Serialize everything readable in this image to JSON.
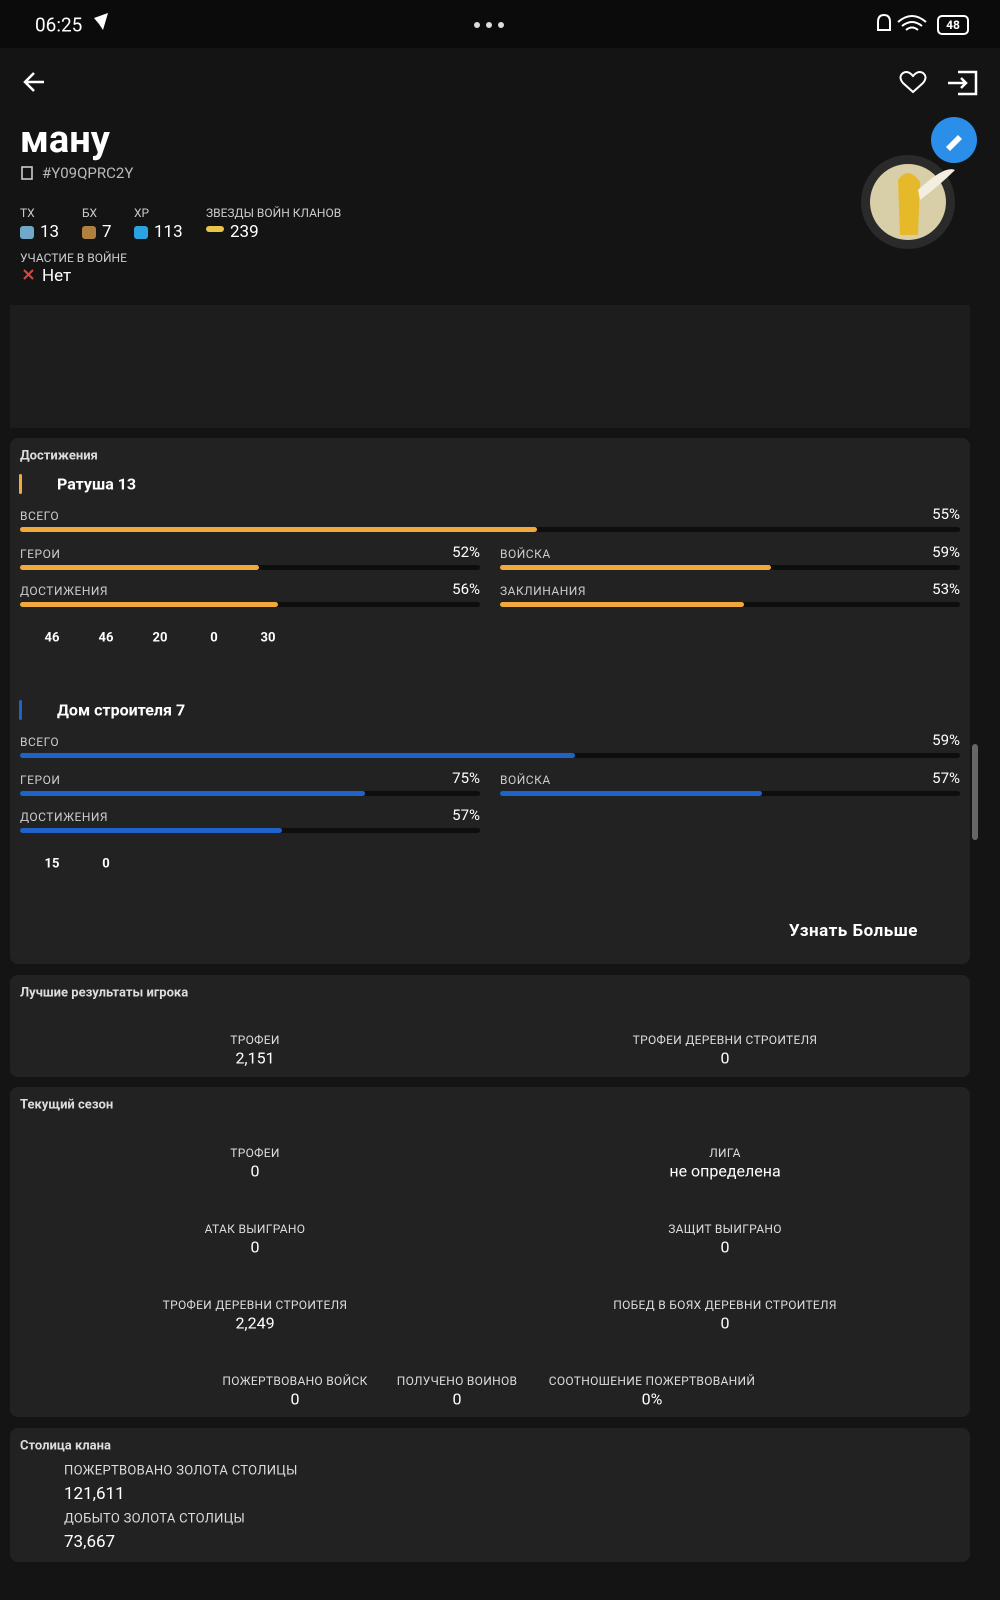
{
  "status": {
    "time": "06:25",
    "battery": "48"
  },
  "header": {
    "name": "ману",
    "tag": "#Y09QPRC2Y",
    "stats": [
      {
        "label": "ТХ",
        "value": "13"
      },
      {
        "label": "БХ",
        "value": "7"
      },
      {
        "label": "XP",
        "value": "113"
      },
      {
        "label": "ЗВЕЗДЫ ВОЙН КЛАНОВ",
        "value": "239"
      }
    ],
    "war": {
      "label": "УЧАСТИЕ В ВОЙНЕ",
      "value": "Нет"
    }
  },
  "achievements": {
    "title": "Достижения",
    "sections": [
      {
        "title": "Ратуша 13",
        "color": "#f2a93b",
        "total": {
          "name": "ВСЕГО",
          "value": 55,
          "value_label": "55%"
        },
        "items": [
          {
            "name": "ГЕРОИ",
            "value": 52,
            "value_label": "52%"
          },
          {
            "name": "ВОЙСКА",
            "value": 59,
            "value_label": "59%"
          },
          {
            "name": "ДОСТИЖЕНИЯ",
            "value": 56,
            "value_label": "56%"
          },
          {
            "name": "ЗАКЛИНАНИЯ",
            "value": 53,
            "value_label": "53%"
          }
        ],
        "heroes": [
          "46",
          "46",
          "20",
          "0",
          "30"
        ]
      },
      {
        "title": "Дом строителя 7",
        "color": "#1f63c8",
        "total": {
          "name": "ВСЕГО",
          "value": 59,
          "value_label": "59%"
        },
        "items": [
          {
            "name": "ГЕРОИ",
            "value": 75,
            "value_label": "75%"
          },
          {
            "name": "ВОЙСКА",
            "value": 57,
            "value_label": "57%"
          },
          {
            "name": "ДОСТИЖЕНИЯ",
            "value": 57,
            "value_label": "57%"
          }
        ],
        "heroes": [
          "15",
          "0"
        ]
      }
    ],
    "more": "Узнать Больше"
  },
  "best": {
    "title": "Лучшие результаты игрока",
    "items": [
      {
        "label": "ТРОФЕИ",
        "value": "2,151"
      },
      {
        "label": "ТРОФЕИ ДЕРЕВНИ СТРОИТЕЛЯ",
        "value": "0"
      }
    ]
  },
  "season": {
    "title": "Текущий сезон",
    "items": [
      {
        "label": "ТРОФЕИ",
        "value": "0"
      },
      {
        "label": "ЛИГА",
        "value": "не определена"
      },
      {
        "label": "АТАК ВЫИГРАНО",
        "value": "0"
      },
      {
        "label": "ЗАЩИТ ВЫИГРАНО",
        "value": "0"
      },
      {
        "label": "ТРОФЕИ ДЕРЕВНИ СТРОИТЕЛЯ",
        "value": "2,249"
      },
      {
        "label": "ПОБЕД В БОЯХ ДЕРЕВНИ СТРОИТЕЛЯ",
        "value": "0"
      },
      {
        "label": "ПОЖЕРТВОВАНО ВОЙСК",
        "value": "0"
      },
      {
        "label": "ПОЛУЧЕНО ВОИНОВ",
        "value": "0"
      },
      {
        "label": "СООТНОШЕНИЕ ПОЖЕРТВОВАНИЙ",
        "value": "0%"
      }
    ]
  },
  "capital": {
    "title": "Столица клана",
    "items": [
      {
        "label": "ПОЖЕРТВОВАНО ЗОЛОТА СТОЛИЦЫ",
        "value": "121,611"
      },
      {
        "label": "ДОБЫТО ЗОЛОТА СТОЛИЦЫ",
        "value": "73,667"
      }
    ]
  }
}
